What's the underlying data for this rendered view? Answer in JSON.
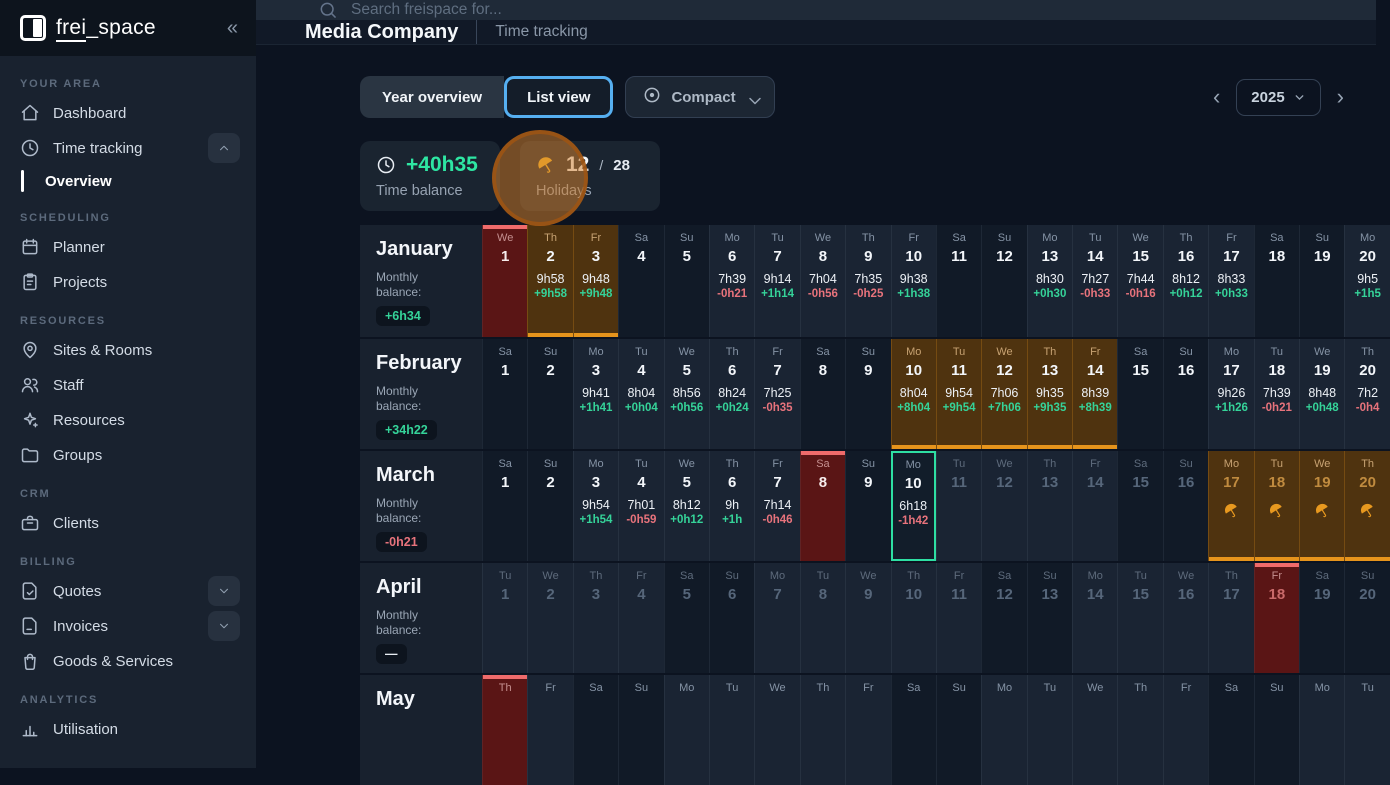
{
  "logo": {
    "first": "frei",
    "rest": "_space",
    "collapse_glyph": "«"
  },
  "search": {
    "placeholder": "Search freispace for..."
  },
  "header": {
    "company": "Media Company",
    "section": "Time tracking"
  },
  "toolbar": {
    "year_overview": "Year overview",
    "list_view": "List view",
    "compact": "Compact",
    "year": "2025",
    "prev_glyph": "‹",
    "next_glyph": "›"
  },
  "stats": {
    "time_balance_value": "+40h35",
    "time_balance_label": "Time balance",
    "holidays_used": "12",
    "holidays_sep": "/",
    "holidays_total": "28",
    "holidays_label": "Holidays"
  },
  "colors": {
    "accent_green": "#2EE6A3",
    "negative_red": "#E8737C",
    "holiday_red": "#EF6B6B",
    "vacation_orange": "#E6941C",
    "selection_blue": "#56AFF0",
    "today_teal": "#2EDFA3"
  },
  "sidebar": {
    "sections": [
      {
        "label": "YOUR AREA",
        "items": [
          {
            "icon": "home-icon",
            "label": "Dashboard"
          },
          {
            "icon": "clock-icon",
            "label": "Time tracking",
            "trailing": "chevron-up"
          },
          {
            "label": "Overview",
            "sub": true,
            "active": true
          }
        ]
      },
      {
        "label": "SCHEDULING",
        "items": [
          {
            "icon": "calendar-icon",
            "label": "Planner"
          },
          {
            "icon": "clipboard-icon",
            "label": "Projects"
          }
        ]
      },
      {
        "label": "RESOURCES",
        "items": [
          {
            "icon": "map-pin-icon",
            "label": "Sites & Rooms"
          },
          {
            "icon": "users-icon",
            "label": "Staff"
          },
          {
            "icon": "sparkles-icon",
            "label": "Resources"
          },
          {
            "icon": "folder-icon",
            "label": "Groups"
          }
        ]
      },
      {
        "label": "CRM",
        "items": [
          {
            "icon": "briefcase-icon",
            "label": "Clients"
          }
        ]
      },
      {
        "label": "BILLING",
        "items": [
          {
            "icon": "file-check-icon",
            "label": "Quotes",
            "trailing": "chevron-down"
          },
          {
            "icon": "file-icon",
            "label": "Invoices",
            "trailing": "chevron-down"
          },
          {
            "icon": "bag-icon",
            "label": "Goods & Services"
          }
        ]
      },
      {
        "label": "ANALYTICS",
        "items": [
          {
            "icon": "chart-icon",
            "label": "Utilisation"
          }
        ]
      }
    ]
  },
  "calendar": {
    "balance_label": "Monthly balance:",
    "months": [
      {
        "name": "January",
        "balance": "+6h34",
        "balance_type": "pos",
        "days": [
          {
            "dow": "We",
            "num": "1",
            "type": "holiday"
          },
          {
            "dow": "Th",
            "num": "2",
            "time": "9h58",
            "delta": "+9h58",
            "dt": "pos",
            "type": "vacation"
          },
          {
            "dow": "Fr",
            "num": "3",
            "time": "9h48",
            "delta": "+9h48",
            "dt": "pos",
            "type": "vacation"
          },
          {
            "dow": "Sa",
            "num": "4",
            "type": "weekend"
          },
          {
            "dow": "Su",
            "num": "5",
            "type": "weekend"
          },
          {
            "dow": "Mo",
            "num": "6",
            "time": "7h39",
            "delta": "-0h21",
            "dt": "neg"
          },
          {
            "dow": "Tu",
            "num": "7",
            "time": "9h14",
            "delta": "+1h14",
            "dt": "pos"
          },
          {
            "dow": "We",
            "num": "8",
            "time": "7h04",
            "delta": "-0h56",
            "dt": "neg"
          },
          {
            "dow": "Th",
            "num": "9",
            "time": "7h35",
            "delta": "-0h25",
            "dt": "neg"
          },
          {
            "dow": "Fr",
            "num": "10",
            "time": "9h38",
            "delta": "+1h38",
            "dt": "pos"
          },
          {
            "dow": "Sa",
            "num": "11",
            "type": "weekend"
          },
          {
            "dow": "Su",
            "num": "12",
            "type": "weekend"
          },
          {
            "dow": "Mo",
            "num": "13",
            "time": "8h30",
            "delta": "+0h30",
            "dt": "pos"
          },
          {
            "dow": "Tu",
            "num": "14",
            "time": "7h27",
            "delta": "-0h33",
            "dt": "neg"
          },
          {
            "dow": "We",
            "num": "15",
            "time": "7h44",
            "delta": "-0h16",
            "dt": "neg"
          },
          {
            "dow": "Th",
            "num": "16",
            "time": "8h12",
            "delta": "+0h12",
            "dt": "pos"
          },
          {
            "dow": "Fr",
            "num": "17",
            "time": "8h33",
            "delta": "+0h33",
            "dt": "pos"
          },
          {
            "dow": "Sa",
            "num": "18",
            "type": "weekend"
          },
          {
            "dow": "Su",
            "num": "19",
            "type": "weekend"
          },
          {
            "dow": "Mo",
            "num": "20",
            "time": "9h5",
            "delta": "+1h5",
            "dt": "pos"
          }
        ]
      },
      {
        "name": "February",
        "balance": "+34h22",
        "balance_type": "pos",
        "days": [
          {
            "dow": "Sa",
            "num": "1",
            "type": "weekend"
          },
          {
            "dow": "Su",
            "num": "2",
            "type": "weekend"
          },
          {
            "dow": "Mo",
            "num": "3",
            "time": "9h41",
            "delta": "+1h41",
            "dt": "pos"
          },
          {
            "dow": "Tu",
            "num": "4",
            "time": "8h04",
            "delta": "+0h04",
            "dt": "pos"
          },
          {
            "dow": "We",
            "num": "5",
            "time": "8h56",
            "delta": "+0h56",
            "dt": "pos"
          },
          {
            "dow": "Th",
            "num": "6",
            "time": "8h24",
            "delta": "+0h24",
            "dt": "pos"
          },
          {
            "dow": "Fr",
            "num": "7",
            "time": "7h25",
            "delta": "-0h35",
            "dt": "neg"
          },
          {
            "dow": "Sa",
            "num": "8",
            "type": "weekend"
          },
          {
            "dow": "Su",
            "num": "9",
            "type": "weekend"
          },
          {
            "dow": "Mo",
            "num": "10",
            "time": "8h04",
            "delta": "+8h04",
            "dt": "pos",
            "type": "vacation"
          },
          {
            "dow": "Tu",
            "num": "11",
            "time": "9h54",
            "delta": "+9h54",
            "dt": "pos",
            "type": "vacation"
          },
          {
            "dow": "We",
            "num": "12",
            "time": "7h06",
            "delta": "+7h06",
            "dt": "pos",
            "type": "vacation"
          },
          {
            "dow": "Th",
            "num": "13",
            "time": "9h35",
            "delta": "+9h35",
            "dt": "pos",
            "type": "vacation"
          },
          {
            "dow": "Fr",
            "num": "14",
            "time": "8h39",
            "delta": "+8h39",
            "dt": "pos",
            "type": "vacation"
          },
          {
            "dow": "Sa",
            "num": "15",
            "type": "weekend"
          },
          {
            "dow": "Su",
            "num": "16",
            "type": "weekend"
          },
          {
            "dow": "Mo",
            "num": "17",
            "time": "9h26",
            "delta": "+1h26",
            "dt": "pos"
          },
          {
            "dow": "Tu",
            "num": "18",
            "time": "7h39",
            "delta": "-0h21",
            "dt": "neg"
          },
          {
            "dow": "We",
            "num": "19",
            "time": "8h48",
            "delta": "+0h48",
            "dt": "pos"
          },
          {
            "dow": "Th",
            "num": "20",
            "time": "7h2",
            "delta": "-0h4",
            "dt": "neg"
          }
        ]
      },
      {
        "name": "March",
        "balance": "-0h21",
        "balance_type": "neg",
        "days": [
          {
            "dow": "Sa",
            "num": "1",
            "type": "weekend"
          },
          {
            "dow": "Su",
            "num": "2",
            "type": "weekend"
          },
          {
            "dow": "Mo",
            "num": "3",
            "time": "9h54",
            "delta": "+1h54",
            "dt": "pos"
          },
          {
            "dow": "Tu",
            "num": "4",
            "time": "7h01",
            "delta": "-0h59",
            "dt": "neg"
          },
          {
            "dow": "We",
            "num": "5",
            "time": "8h12",
            "delta": "+0h12",
            "dt": "pos"
          },
          {
            "dow": "Th",
            "num": "6",
            "time": "9h",
            "delta": "+1h",
            "dt": "pos"
          },
          {
            "dow": "Fr",
            "num": "7",
            "time": "7h14",
            "delta": "-0h46",
            "dt": "neg"
          },
          {
            "dow": "Sa",
            "num": "8",
            "type": "holiday"
          },
          {
            "dow": "Su",
            "num": "9",
            "type": "weekend"
          },
          {
            "dow": "Mo",
            "num": "10",
            "time": "6h18",
            "delta": "-1h42",
            "dt": "neg",
            "today": true
          },
          {
            "dow": "Tu",
            "num": "11",
            "future": true
          },
          {
            "dow": "We",
            "num": "12",
            "future": true
          },
          {
            "dow": "Th",
            "num": "13",
            "future": true
          },
          {
            "dow": "Fr",
            "num": "14",
            "future": true
          },
          {
            "dow": "Sa",
            "num": "15",
            "type": "weekend",
            "future": true
          },
          {
            "dow": "Su",
            "num": "16",
            "type": "weekend",
            "future": true
          },
          {
            "dow": "Mo",
            "num": "17",
            "type": "vacation",
            "future": true,
            "umbrella": true
          },
          {
            "dow": "Tu",
            "num": "18",
            "type": "vacation",
            "future": true,
            "umbrella": true
          },
          {
            "dow": "We",
            "num": "19",
            "type": "vacation",
            "future": true,
            "umbrella": true
          },
          {
            "dow": "Th",
            "num": "20",
            "type": "vacation",
            "future": true,
            "umbrella": true
          }
        ]
      },
      {
        "name": "April",
        "balance": "—",
        "balance_type": "neutral",
        "days": [
          {
            "dow": "Tu",
            "num": "1",
            "future": true
          },
          {
            "dow": "We",
            "num": "2",
            "future": true
          },
          {
            "dow": "Th",
            "num": "3",
            "future": true
          },
          {
            "dow": "Fr",
            "num": "4",
            "future": true
          },
          {
            "dow": "Sa",
            "num": "5",
            "type": "weekend",
            "future": true
          },
          {
            "dow": "Su",
            "num": "6",
            "type": "weekend",
            "future": true
          },
          {
            "dow": "Mo",
            "num": "7",
            "future": true
          },
          {
            "dow": "Tu",
            "num": "8",
            "future": true
          },
          {
            "dow": "We",
            "num": "9",
            "future": true
          },
          {
            "dow": "Th",
            "num": "10",
            "future": true
          },
          {
            "dow": "Fr",
            "num": "11",
            "future": true
          },
          {
            "dow": "Sa",
            "num": "12",
            "type": "weekend",
            "future": true
          },
          {
            "dow": "Su",
            "num": "13",
            "type": "weekend",
            "future": true
          },
          {
            "dow": "Mo",
            "num": "14",
            "future": true
          },
          {
            "dow": "Tu",
            "num": "15",
            "future": true
          },
          {
            "dow": "We",
            "num": "16",
            "future": true
          },
          {
            "dow": "Th",
            "num": "17",
            "future": true
          },
          {
            "dow": "Fr",
            "num": "18",
            "type": "holiday",
            "future": true
          },
          {
            "dow": "Sa",
            "num": "19",
            "type": "weekend",
            "future": true
          },
          {
            "dow": "Su",
            "num": "20",
            "type": "weekend",
            "future": true
          }
        ]
      },
      {
        "name": "May",
        "days": [
          {
            "dow": "Th",
            "type": "holiday"
          },
          {
            "dow": "Fr"
          },
          {
            "dow": "Sa",
            "type": "weekend"
          },
          {
            "dow": "Su",
            "type": "weekend"
          },
          {
            "dow": "Mo"
          },
          {
            "dow": "Tu"
          },
          {
            "dow": "We"
          },
          {
            "dow": "Th"
          },
          {
            "dow": "Fr"
          },
          {
            "dow": "Sa",
            "type": "weekend"
          },
          {
            "dow": "Su",
            "type": "weekend"
          },
          {
            "dow": "Mo"
          },
          {
            "dow": "Tu"
          },
          {
            "dow": "We"
          },
          {
            "dow": "Th"
          },
          {
            "dow": "Fr"
          },
          {
            "dow": "Sa",
            "type": "weekend"
          },
          {
            "dow": "Su",
            "type": "weekend"
          },
          {
            "dow": "Mo"
          },
          {
            "dow": "Tu"
          }
        ]
      }
    ]
  }
}
